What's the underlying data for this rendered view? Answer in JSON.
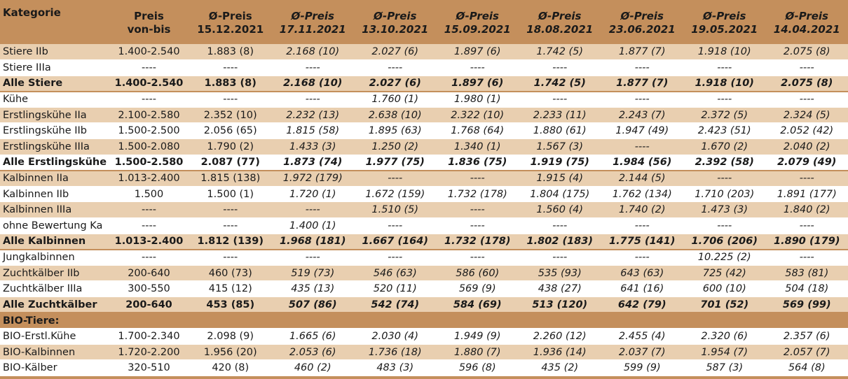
{
  "headers": {
    "category": "Kategorie",
    "price": [
      "Preis",
      "von-bis"
    ],
    "cols": [
      [
        "Ø-Preis",
        "15.12.2021"
      ],
      [
        "Ø-Preis",
        "17.11.2021"
      ],
      [
        "Ø-Preis",
        "13.10.2021"
      ],
      [
        "Ø-Preis",
        "15.09.2021"
      ],
      [
        "Ø-Preis",
        "18.08.2021"
      ],
      [
        "Ø-Preis",
        "23.06.2021"
      ],
      [
        "Ø-Preis",
        "19.05.2021"
      ],
      [
        "Ø-Preis",
        "14.04.2021"
      ]
    ]
  },
  "rows": [
    {
      "type": "data",
      "shade": "odd",
      "cells": [
        "Stiere IIb",
        "1.400-2.540",
        "1.883 (8)",
        "2.168 (10)",
        "2.027 (6)",
        "1.897 (6)",
        "1.742 (5)",
        "1.877 (7)",
        "1.918 (10)",
        "2.075 (8)"
      ]
    },
    {
      "type": "data",
      "shade": "even",
      "cells": [
        "Stiere IIIa",
        "----",
        "----",
        "----",
        "----",
        "----",
        "----",
        "----",
        "----",
        "----"
      ]
    },
    {
      "type": "total",
      "shade": "odd",
      "cells": [
        "Alle Stiere",
        "1.400-2.540",
        "1.883 (8)",
        "2.168 (10)",
        "2.027 (6)",
        "1.897 (6)",
        "1.742 (5)",
        "1.877 (7)",
        "1.918 (10)",
        "2.075 (8)"
      ]
    },
    {
      "type": "data",
      "shade": "even",
      "cells": [
        "Kühe",
        "----",
        "----",
        "----",
        "1.760 (1)",
        "1.980 (1)",
        "----",
        "----",
        "----",
        "----"
      ]
    },
    {
      "type": "data",
      "shade": "odd",
      "cells": [
        "Erstlingskühe IIa",
        "2.100-2.580",
        "2.352 (10)",
        "2.232 (13)",
        "2.638 (10)",
        "2.322 (10)",
        "2.233 (11)",
        "2.243 (7)",
        "2.372 (5)",
        "2.324 (5)"
      ]
    },
    {
      "type": "data",
      "shade": "even",
      "cells": [
        "Erstlingskühe IIb",
        "1.500-2.500",
        "2.056 (65)",
        "1.815 (58)",
        "1.895 (63)",
        "1.768 (64)",
        "1.880 (61)",
        "1.947 (49)",
        "2.423 (51)",
        "2.052 (42)"
      ]
    },
    {
      "type": "data",
      "shade": "odd",
      "cells": [
        "Erstlingskühe IIIa",
        "1.500-2.080",
        "1.790 (2)",
        "1.433 (3)",
        "1.250 (2)",
        "1.340 (1)",
        "1.567 (3)",
        "----",
        "1.670 (2)",
        "2.040 (2)"
      ]
    },
    {
      "type": "total",
      "shade": "even",
      "cells": [
        "Alle Erstlingskühe",
        "1.500-2.580",
        "2.087 (77)",
        "1.873 (74)",
        "1.977 (75)",
        "1.836 (75)",
        "1.919 (75)",
        "1.984 (56)",
        "2.392 (58)",
        "2.079 (49)"
      ]
    },
    {
      "type": "data",
      "shade": "odd",
      "cells": [
        "Kalbinnen IIa",
        "1.013-2.400",
        "1.815 (138)",
        "1.972 (179)",
        "----",
        "----",
        "1.915 (4)",
        "2.144 (5)",
        "----",
        "----"
      ]
    },
    {
      "type": "data",
      "shade": "even",
      "cells": [
        "Kalbinnen IIb",
        "1.500",
        "1.500 (1)",
        "1.720  (1)",
        "1.672 (159)",
        "1.732 (178)",
        "1.804 (175)",
        "1.762 (134)",
        "1.710 (203)",
        "1.891 (177)"
      ]
    },
    {
      "type": "data",
      "shade": "odd",
      "cells": [
        "Kalbinnen IIIa",
        "----",
        "----",
        "----",
        "1.510 (5)",
        "----",
        "1.560 (4)",
        "1.740 (2)",
        "1.473 (3)",
        "1.840 (2)"
      ]
    },
    {
      "type": "data",
      "shade": "even",
      "cells": [
        "ohne Bewertung Ka",
        "----",
        "----",
        "1.400 (1)",
        "----",
        "----",
        "----",
        "----",
        "----",
        "----"
      ]
    },
    {
      "type": "total",
      "shade": "odd",
      "cells": [
        "Alle Kalbinnen",
        "1.013-2.400",
        "1.812 (139)",
        "1.968 (181)",
        "1.667 (164)",
        "1.732 (178)",
        "1.802 (183)",
        "1.775 (141)",
        "1.706 (206)",
        "1.890 (179)"
      ]
    },
    {
      "type": "data",
      "shade": "even",
      "cells": [
        "Jungkalbinnen",
        "----",
        "----",
        "----",
        "----",
        "----",
        "----",
        "----",
        "10.225 (2)",
        "----"
      ]
    },
    {
      "type": "data",
      "shade": "odd",
      "cells": [
        "Zuchtkälber IIb",
        "200-640",
        "460 (73)",
        "519 (73)",
        "546 (63)",
        "586 (60)",
        "535 (93)",
        "643 (63)",
        "725 (42)",
        "583 (81)"
      ]
    },
    {
      "type": "data",
      "shade": "even",
      "cells": [
        "Zuchtkälber IIIa",
        "300-550",
        "415 (12)",
        "435 (13)",
        "520 (11)",
        "569 (9)",
        "438 (27)",
        "641 (16)",
        "600 (10)",
        "504 (18)"
      ]
    },
    {
      "type": "total",
      "shade": "odd",
      "cells": [
        "Alle Zuchtkälber",
        "200-640",
        "453 (85)",
        "507 (86)",
        "542 (74)",
        "584 (69)",
        "513 (120)",
        "642 (79)",
        "701 (52)",
        "569 (99)"
      ]
    },
    {
      "type": "section",
      "shade": "section",
      "cells": [
        "BIO-Tiere:",
        "",
        "",
        "",
        "",
        "",
        "",
        "",
        "",
        ""
      ]
    },
    {
      "type": "data",
      "shade": "even",
      "cells": [
        "BIO-Erstl.Kühe",
        "1.700-2.340",
        "2.098 (9)",
        "1.665 (6)",
        "2.030 (4)",
        "1.949 (9)",
        "2.260 (12)",
        "2.455 (4)",
        "2.320 (6)",
        "2.357 (6)"
      ]
    },
    {
      "type": "data",
      "shade": "odd",
      "cells": [
        "BIO-Kalbinnen",
        "1.720-2.200",
        "1.956 (20)",
        "2.053 (6)",
        "1.736 (18)",
        "1.880 (7)",
        "1.936 (14)",
        "2.037 (7)",
        "1.954 (7)",
        "2.057 (7)"
      ]
    },
    {
      "type": "data",
      "shade": "even",
      "cells": [
        "BIO-Kälber",
        "320-510",
        "420 (8)",
        "460 (2)",
        "483 (3)",
        "596 (8)",
        "435 (2)",
        "599 (9)",
        "587 (3)",
        "564 (8)"
      ]
    }
  ]
}
